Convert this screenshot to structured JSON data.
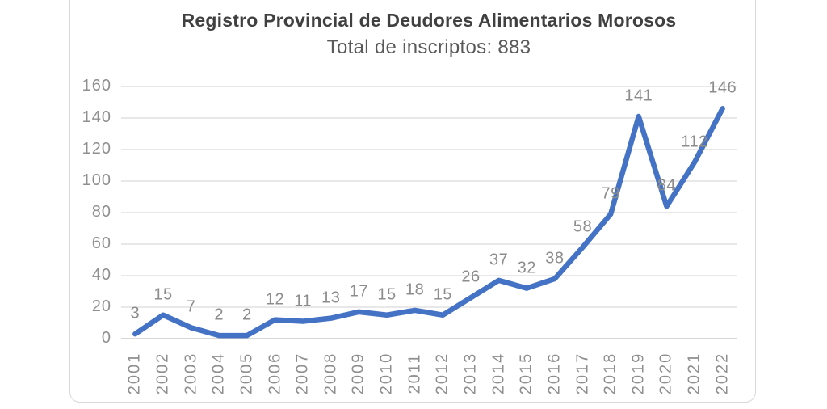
{
  "chart_data": {
    "type": "line",
    "title": "Registro Provincial de Deudores Alimentarios Morosos",
    "subtitle": "Total de inscriptos: 883",
    "total_inscriptos": 883,
    "categories": [
      "2001",
      "2002",
      "2003",
      "2004",
      "2005",
      "2006",
      "2007",
      "2008",
      "2009",
      "2010",
      "2011",
      "2012",
      "2013",
      "2014",
      "2015",
      "2016",
      "2017",
      "2018",
      "2019",
      "2020",
      "2021",
      "2022"
    ],
    "values": [
      3,
      15,
      7,
      2,
      2,
      12,
      11,
      13,
      17,
      15,
      18,
      15,
      26,
      37,
      32,
      38,
      58,
      79,
      141,
      84,
      112,
      146
    ],
    "xlabel": "",
    "ylabel": "",
    "ylim": [
      0,
      160
    ],
    "yticks": [
      0,
      20,
      40,
      60,
      80,
      100,
      120,
      140,
      160
    ],
    "grid": true,
    "legend": "none",
    "data_labels": true,
    "x_label_rotation_deg": -90,
    "colors": {
      "line": "#4472C4",
      "gridline": "#D9D9D9",
      "axis_line": "#BFBFBF",
      "data_label": "#8C8C8C",
      "tick_label": "#8F8F8F",
      "title": "#404040",
      "subtitle": "#595959",
      "frame_border": "#D9D9D9"
    }
  }
}
